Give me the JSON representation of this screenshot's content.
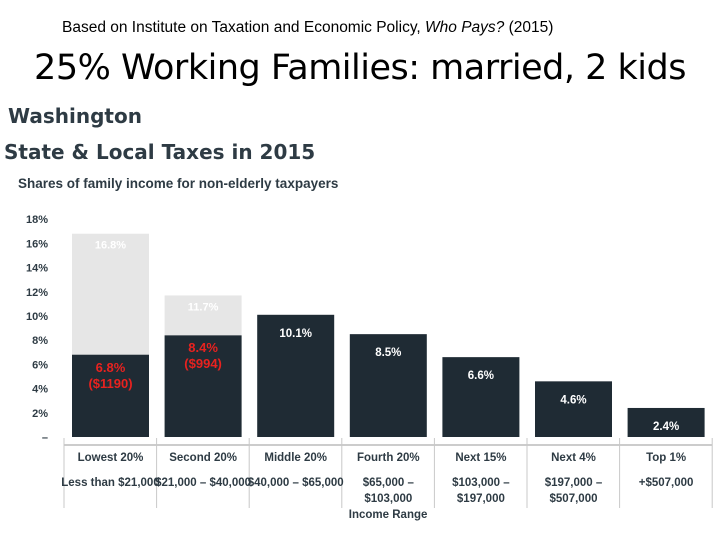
{
  "source": {
    "prefix": "Based on Institute on Taxation and Economic Policy, ",
    "italic": "Who Pays?",
    "suffix": " (2015)"
  },
  "slide_title": "25% Working Families: married, 2 kids",
  "state": "Washington",
  "chart_title": "State & Local Taxes in 2015",
  "chart_subtitle": "Shares of family income for non-elderly taxpayers",
  "colors": {
    "bar": "#1f2b34",
    "ghost": "#e6e6e6",
    "highlight_text": "#e8221f",
    "label_text": "#ffffff",
    "axis_text": "#2e3b44"
  },
  "chart_data": {
    "type": "bar",
    "title": "State & Local Taxes in 2015",
    "subtitle": "Shares of family income for non-elderly taxpayers",
    "xlabel": "Income Range",
    "ylabel": "",
    "ylim": [
      0,
      18
    ],
    "yticks": [
      "18%",
      "16%",
      "14%",
      "12%",
      "10%",
      "8%",
      "6%",
      "4%",
      "2%",
      "–"
    ],
    "categories": [
      "Lowest 20%",
      "Second 20%",
      "Middle 20%",
      "Fourth 20%",
      "Next 15%",
      "Next 4%",
      "Top 1%"
    ],
    "ranges": [
      [
        "Less than $21,000"
      ],
      [
        "$21,000 – $40,000"
      ],
      [
        "$40,000 – $65,000"
      ],
      [
        "$65,000 –",
        "$103,000"
      ],
      [
        "$103,000 –",
        "$197,000"
      ],
      [
        "$197,000 –",
        "$507,000"
      ],
      [
        "+$507,000"
      ]
    ],
    "series": [
      {
        "values": [
          6.8,
          8.4,
          10.1,
          8.5,
          6.6,
          4.6,
          2.4
        ]
      },
      {
        "values": [
          16.8,
          11.7,
          null,
          null,
          null,
          null,
          null
        ]
      }
    ],
    "labels": [
      "6.8%",
      "8.4%",
      "10.1%",
      "8.5%",
      "6.6%",
      "4.6%",
      "2.4%"
    ],
    "ghost_labels": [
      "16.8%",
      "11.7%",
      null,
      null,
      null,
      null,
      null
    ],
    "highlight_labels": [
      [
        "6.8%",
        "($1190)"
      ],
      [
        "8.4%",
        "($994)"
      ],
      null,
      null,
      null,
      null,
      null
    ],
    "grid": false,
    "legend": "none"
  }
}
